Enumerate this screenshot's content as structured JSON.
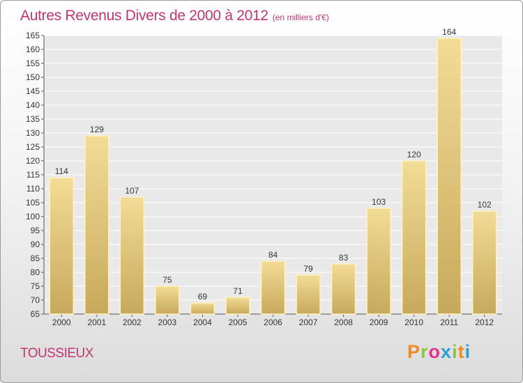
{
  "header": {
    "title": "Autres Revenus Divers de 2000 à 2012",
    "unit": "(en milliers d'€)"
  },
  "footer": {
    "city": "TOUSSIEUX",
    "brand": "Proxiti",
    "brand_colors": [
      "#f08a24",
      "#8dc63f",
      "#e2328d",
      "#2b9fd8",
      "#8dc63f",
      "#f08a24",
      "#2b9fd8"
    ]
  },
  "colors": {
    "title": "#c2366e",
    "bar_light": "#f3dc96",
    "bar_dark": "#c7a95c",
    "bar_edge": "#fff3c4"
  },
  "chart_data": {
    "type": "bar",
    "title": "Autres Revenus Divers de 2000 à 2012",
    "subtitle": "(en milliers d'€)",
    "categories": [
      "2000",
      "2001",
      "2002",
      "2003",
      "2004",
      "2005",
      "2006",
      "2007",
      "2008",
      "2009",
      "2010",
      "2011",
      "2012"
    ],
    "values": [
      114,
      129,
      107,
      75,
      69,
      71,
      84,
      79,
      83,
      103,
      120,
      164,
      102
    ],
    "ylim": [
      65,
      165
    ],
    "yticks": [
      65,
      70,
      75,
      80,
      85,
      90,
      95,
      100,
      105,
      110,
      115,
      120,
      125,
      130,
      135,
      140,
      145,
      150,
      155,
      160,
      165
    ],
    "grid": true,
    "data_labels": true
  }
}
